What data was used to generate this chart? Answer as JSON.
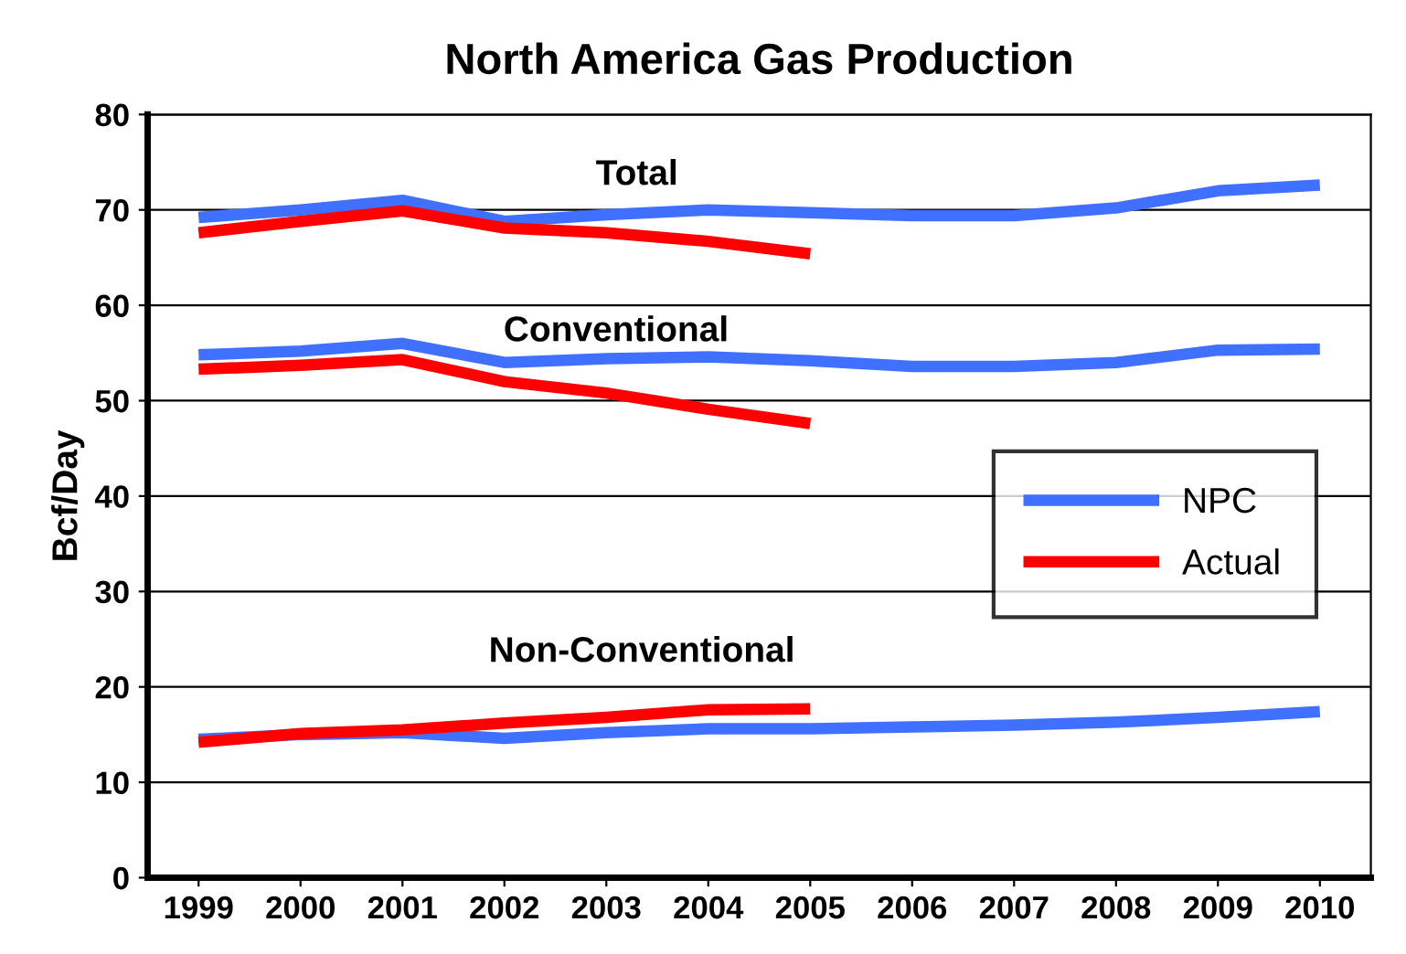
{
  "chart_data": {
    "type": "line",
    "title": "North America Gas Production",
    "ylabel": "Bcf/Day",
    "categories": [
      "1999",
      "2000",
      "2001",
      "2002",
      "2003",
      "2004",
      "2005",
      "2006",
      "2007",
      "2008",
      "2009",
      "2010"
    ],
    "series": [
      {
        "name": "NPC",
        "color": "#4070ff",
        "values": [
          69.2,
          70,
          71,
          68.8,
          69.5,
          70,
          69.7,
          69.4,
          69.4,
          70.2,
          72,
          72.6
        ]
      },
      {
        "name": "Actual",
        "color": "#ff0000",
        "values": [
          67.6,
          68.8,
          69.9,
          68.1,
          67.6,
          66.7,
          65.4,
          null,
          null,
          null,
          null,
          null
        ]
      },
      {
        "color": "#4070ff",
        "values": [
          54.8,
          55.2,
          56,
          54,
          54.4,
          54.6,
          54.2,
          53.6,
          53.6,
          54,
          55.3,
          55.4
        ]
      },
      {
        "color": "#ff0000",
        "values": [
          53.3,
          53.7,
          54.3,
          52,
          50.8,
          49.1,
          47.6,
          null,
          null,
          null,
          null,
          null
        ]
      },
      {
        "color": "#4070ff",
        "values": [
          14.5,
          15,
          15.2,
          14.6,
          15.2,
          15.6,
          15.6,
          15.8,
          16,
          16.3,
          16.8,
          17.4
        ]
      },
      {
        "color": "#ff0000",
        "values": [
          14.2,
          15.1,
          15.5,
          16.2,
          16.8,
          17.6,
          17.7,
          null,
          null,
          null,
          null,
          null
        ]
      }
    ],
    "annotations": [
      "Total",
      "Conventional",
      "Non-Conventional"
    ],
    "ylim": [
      0,
      80
    ],
    "yticks": [
      0,
      10,
      20,
      30,
      40,
      50,
      60,
      70,
      80
    ],
    "grid": "y",
    "legend": "center right",
    "marker": "none",
    "line_style": "solid"
  }
}
